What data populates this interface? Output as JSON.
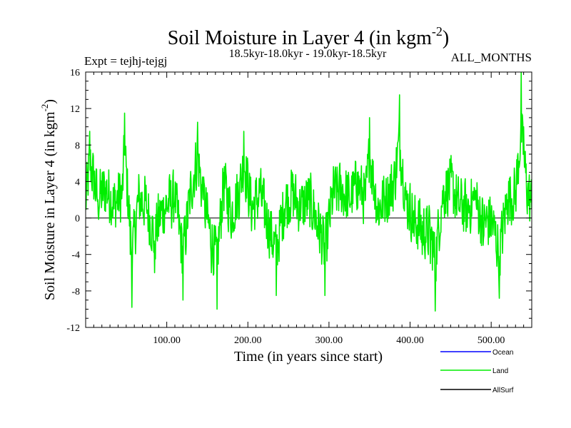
{
  "chart_data": {
    "type": "line",
    "title": "Soil Moisture in Layer 4 (in kgm",
    "title_sup": "-2",
    "title_close": ")",
    "subtitle_left": "Expt = tejhj-tejgj",
    "subtitle_center": "18.5kyr-18.0kyr - 19.0kyr-18.5kyr",
    "subtitle_right": "ALL_MONTHS",
    "xlabel": "Time (in years since start)",
    "ylabel": "Soil Moisture in Layer 4 (in kgm",
    "ylabel_sup": "-2",
    "ylabel_close": ")",
    "xlim": [
      0,
      550
    ],
    "ylim": [
      -12,
      16
    ],
    "x_ticks": [
      100,
      200,
      300,
      400,
      500
    ],
    "x_tick_labels": [
      "100.00",
      "200.00",
      "300.00",
      "400.00",
      "500.00"
    ],
    "y_ticks": [
      -12,
      -8,
      -4,
      0,
      4,
      8,
      12,
      16
    ],
    "y_tick_labels": [
      "-12",
      "-8",
      "-4",
      "0",
      "4",
      "8",
      "12",
      "16"
    ],
    "zero_line": true,
    "legend_position": "bottom-right",
    "series": [
      {
        "name": "Ocean",
        "color": "#0000ff",
        "values": []
      },
      {
        "name": "Land",
        "color": "#00ee00",
        "x_start": 0,
        "x_end": 550,
        "points_count": 1100,
        "anchors": [
          [
            0,
            1
          ],
          [
            5,
            9.5
          ],
          [
            15,
            2
          ],
          [
            25,
            4
          ],
          [
            35,
            1
          ],
          [
            45,
            3
          ],
          [
            48,
            11.5
          ],
          [
            55,
            -4
          ],
          [
            57,
            -9.8
          ],
          [
            65,
            2
          ],
          [
            75,
            1
          ],
          [
            85,
            -6
          ],
          [
            90,
            -2
          ],
          [
            100,
            1
          ],
          [
            110,
            2
          ],
          [
            120,
            -9
          ],
          [
            130,
            4
          ],
          [
            138,
            10.5
          ],
          [
            145,
            2
          ],
          [
            155,
            -6
          ],
          [
            162,
            -10
          ],
          [
            170,
            5
          ],
          [
            180,
            -1
          ],
          [
            190,
            4
          ],
          [
            195,
            9.5
          ],
          [
            205,
            0
          ],
          [
            215,
            3
          ],
          [
            225,
            -3
          ],
          [
            235,
            -8.5
          ],
          [
            245,
            1
          ],
          [
            255,
            3
          ],
          [
            265,
            0
          ],
          [
            275,
            2
          ],
          [
            285,
            -2
          ],
          [
            295,
            -8.5
          ],
          [
            305,
            3
          ],
          [
            315,
            4
          ],
          [
            325,
            2
          ],
          [
            335,
            5
          ],
          [
            345,
            2
          ],
          [
            350,
            11
          ],
          [
            360,
            0
          ],
          [
            370,
            2
          ],
          [
            380,
            5
          ],
          [
            387,
            13.5
          ],
          [
            395,
            2
          ],
          [
            405,
            -2
          ],
          [
            415,
            -4
          ],
          [
            425,
            -5
          ],
          [
            431,
            -10.2
          ],
          [
            440,
            3
          ],
          [
            450,
            5
          ],
          [
            460,
            1
          ],
          [
            470,
            0
          ],
          [
            480,
            2
          ],
          [
            490,
            -3
          ],
          [
            500,
            -2
          ],
          [
            510,
            -8.8
          ],
          [
            520,
            2
          ],
          [
            530,
            3
          ],
          [
            537,
            16
          ],
          [
            540,
            10
          ],
          [
            545,
            3
          ],
          [
            550,
            1
          ]
        ],
        "noise_amplitude": 3.4
      },
      {
        "name": "AllSurf",
        "color": "#000000",
        "values": []
      }
    ]
  }
}
